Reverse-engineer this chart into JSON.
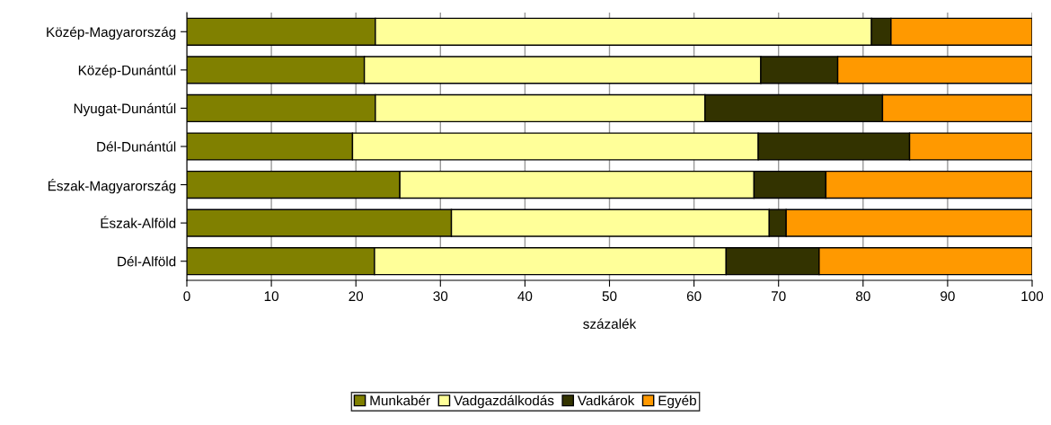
{
  "chart_data": {
    "type": "bar",
    "orientation": "horizontal",
    "stacked": true,
    "xlabel": "százalék",
    "categories": [
      "Közép-Magyarország",
      "Közép-Dunántúl",
      "Nyugat-Dunántúl",
      "Dél-Dunántúl",
      "Észak-Magyarország",
      "Észak-Alföld",
      "Dél-Alföld"
    ],
    "series": [
      {
        "name": "Munkabér",
        "color": "#808000",
        "values": [
          22.3,
          21.0,
          22.3,
          19.6,
          25.2,
          31.3,
          22.2
        ]
      },
      {
        "name": "Vadgazdálkodás",
        "color": "#ffff99",
        "values": [
          58.7,
          46.9,
          39.0,
          48.0,
          41.9,
          37.6,
          41.6
        ]
      },
      {
        "name": "Vadkárok",
        "color": "#333300",
        "values": [
          2.3,
          9.1,
          21.0,
          17.9,
          8.5,
          2.0,
          11.0
        ]
      },
      {
        "name": "Egyéb",
        "color": "#ff9900",
        "values": [
          16.7,
          23.0,
          17.7,
          14.5,
          24.4,
          29.1,
          25.2
        ]
      }
    ],
    "xlim": [
      0,
      100
    ],
    "xticks": [
      0,
      10,
      20,
      30,
      40,
      50,
      60,
      70,
      80,
      90,
      100
    ],
    "grid": "x",
    "legend": "bottom"
  }
}
